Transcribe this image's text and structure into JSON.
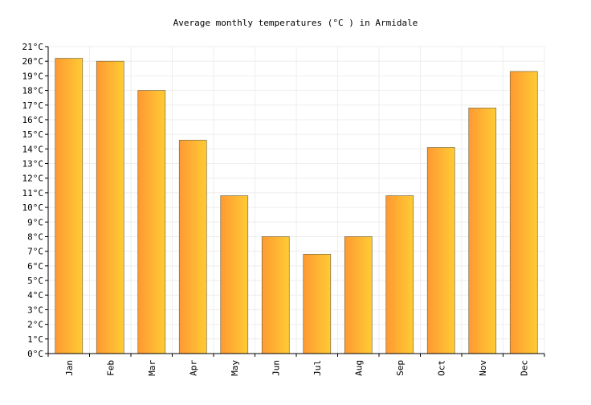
{
  "chart_data": {
    "type": "bar",
    "title": "Average monthly temperatures (°C ) in Armidale",
    "xlabel": "",
    "ylabel": "",
    "categories": [
      "Jan",
      "Feb",
      "Mar",
      "Apr",
      "May",
      "Jun",
      "Jul",
      "Aug",
      "Sep",
      "Oct",
      "Nov",
      "Dec"
    ],
    "values": [
      20.2,
      20.0,
      18.0,
      14.6,
      10.8,
      8.0,
      6.8,
      8.0,
      10.8,
      14.1,
      16.8,
      19.3
    ],
    "ylim": [
      0,
      21
    ],
    "y_ticks": [
      "0°C",
      "1°C",
      "2°C",
      "3°C",
      "4°C",
      "5°C",
      "6°C",
      "7°C",
      "8°C",
      "9°C",
      "10°C",
      "11°C",
      "12°C",
      "13°C",
      "14°C",
      "15°C",
      "16°C",
      "17°C",
      "18°C",
      "19°C",
      "20°C",
      "21°C"
    ],
    "grid": true,
    "colors": {
      "bar_left": "#ff9933",
      "bar_right": "#ffcc33",
      "bar_stroke": "#7a6a40",
      "grid": "#eeeeee",
      "axis": "#000000",
      "text": "#000000"
    }
  }
}
